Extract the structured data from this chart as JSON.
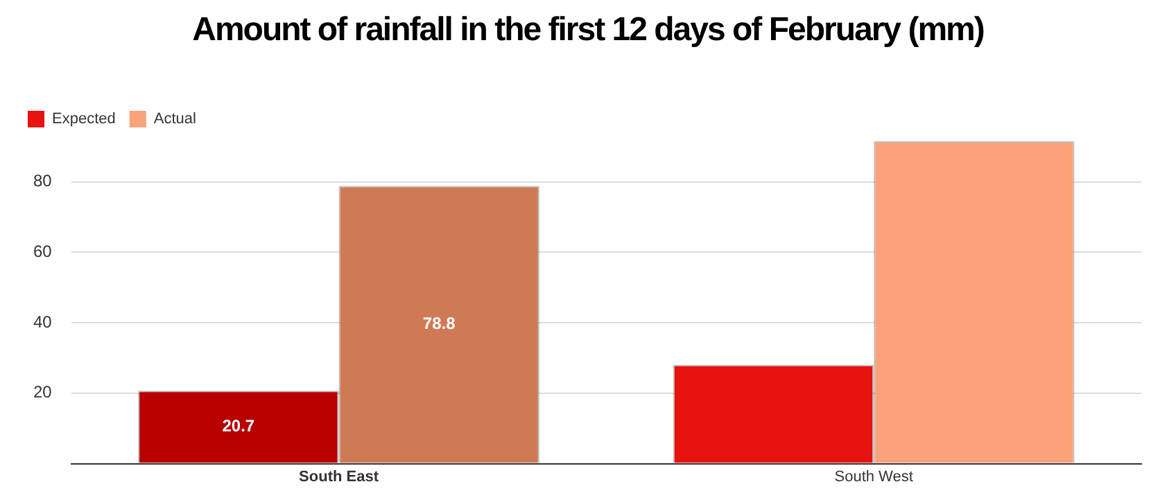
{
  "chart_data": {
    "type": "bar",
    "title": "Amount of rainfall in the first 12 days of February (mm)",
    "categories": [
      "South East",
      "South West"
    ],
    "series": [
      {
        "name": "Expected",
        "color": "#e8120f",
        "colors": [
          "#b80000",
          "#e8120f"
        ],
        "values": [
          20.7,
          28
        ],
        "value_labels": [
          "20.7",
          null
        ]
      },
      {
        "name": "Actual",
        "color": "#fba27a",
        "colors": [
          "#d07a55",
          "#fba27a"
        ],
        "values": [
          78.8,
          91.5
        ],
        "value_labels": [
          "78.8",
          null
        ]
      }
    ],
    "ylim": [
      0,
      91.5
    ],
    "yticks": [
      {
        "value": 0,
        "label": null
      },
      20,
      40,
      60,
      80
    ],
    "grid": "y",
    "legend": "top left"
  }
}
